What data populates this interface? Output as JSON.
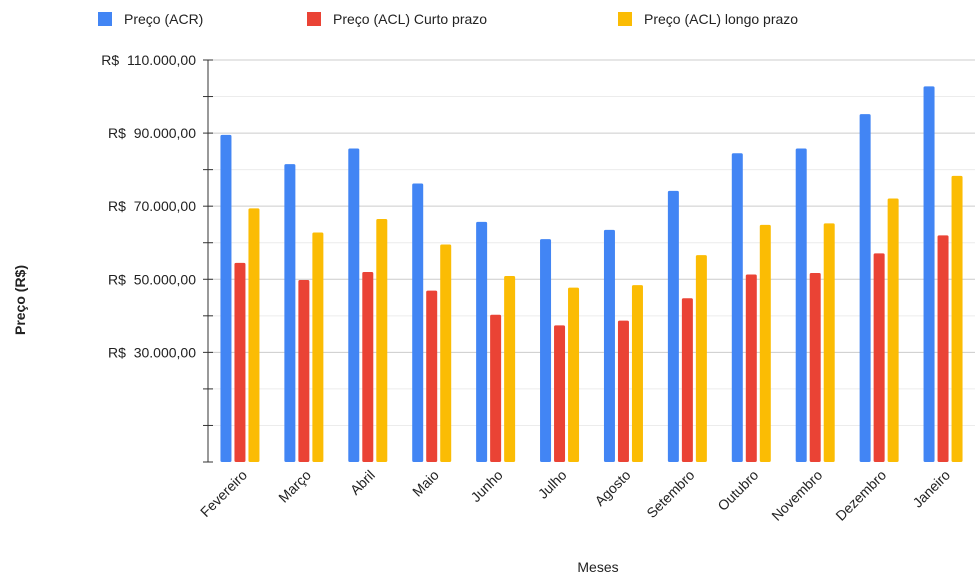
{
  "chart_data": {
    "type": "bar",
    "title": "",
    "xlabel": "Meses",
    "ylabel": "Preço (R$)",
    "categories": [
      "Fevereiro",
      "Março",
      "Abril",
      "Maio",
      "Junho",
      "Julho",
      "Agosto",
      "Setembro",
      "Outubro",
      "Novembro",
      "Dezembro",
      "Janeiro"
    ],
    "series": [
      {
        "name": "Preço (ACR)",
        "color": "#4285f4",
        "values": [
          89500,
          81500,
          85800,
          76200,
          65700,
          61000,
          63500,
          74200,
          84500,
          85800,
          95200,
          102800
        ]
      },
      {
        "name": "Preço (ACL) Curto prazo",
        "color": "#ea4335",
        "values": [
          54500,
          49800,
          52000,
          46900,
          40300,
          37400,
          38700,
          44800,
          51300,
          51700,
          57100,
          62000
        ]
      },
      {
        "name": "Preço (ACL) longo prazo",
        "color": "#fbbc04",
        "values": [
          69400,
          62800,
          66500,
          59500,
          50900,
          47700,
          48400,
          56600,
          64900,
          65300,
          72100,
          78300
        ]
      }
    ],
    "ylim": [
      0,
      110000
    ],
    "yticks": [
      {
        "value": 110000,
        "label": "R$  110.000,00"
      },
      {
        "value": 90000,
        "label": "R$  90.000,00"
      },
      {
        "value": 70000,
        "label": "R$  70.000,00"
      },
      {
        "value": 50000,
        "label": "R$  50.000,00"
      },
      {
        "value": 30000,
        "label": "R$  30.000,00"
      }
    ],
    "grid": true,
    "legend_position": "top"
  }
}
